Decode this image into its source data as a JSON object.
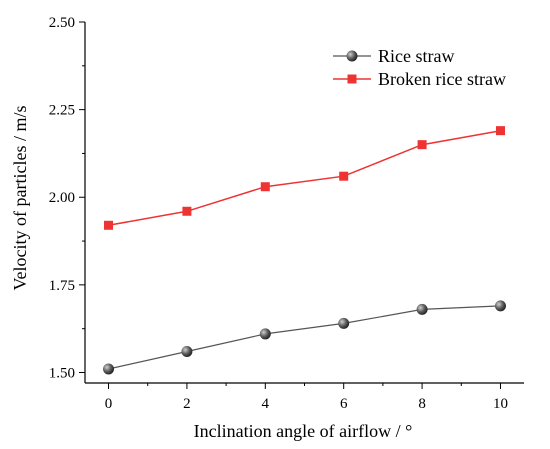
{
  "chart_data": {
    "type": "line",
    "xlabel": "Inclination angle of airflow / °",
    "ylabel": "Velocity of particles / m/s",
    "xlim": [
      -0.6,
      10.6
    ],
    "ylim": [
      1.47,
      2.5
    ],
    "x_ticks": [
      "0",
      "2",
      "4",
      "6",
      "8",
      "10"
    ],
    "y_ticks": [
      "1.50",
      "1.75",
      "2.00",
      "2.25",
      "2.50"
    ],
    "x": [
      0,
      2,
      4,
      6,
      8,
      10
    ],
    "series": [
      {
        "name": "Rice straw",
        "marker": "circle",
        "color": "#555555",
        "values": [
          1.51,
          1.56,
          1.61,
          1.64,
          1.68,
          1.69
        ]
      },
      {
        "name": "Broken rice straw",
        "marker": "square",
        "color": "#ee3333",
        "values": [
          1.92,
          1.96,
          2.03,
          2.06,
          2.15,
          2.19
        ]
      }
    ],
    "legend_position": "top-right",
    "grid": false
  }
}
